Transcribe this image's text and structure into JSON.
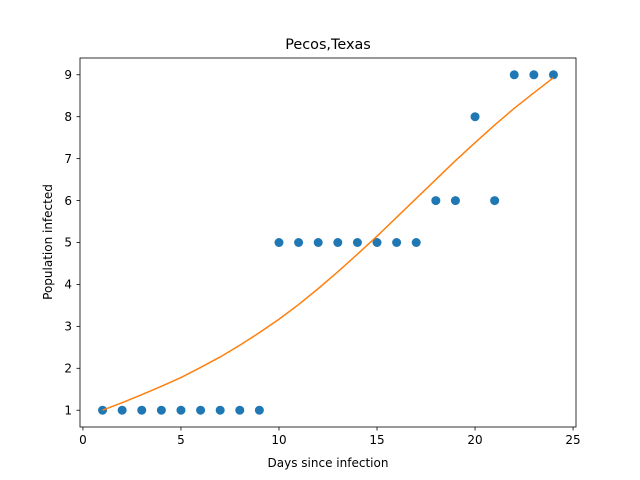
{
  "chart_data": {
    "type": "scatter",
    "title": "Pecos,Texas",
    "xlabel": "Days since infection",
    "ylabel": "Population infected",
    "xlim": [
      -0.15,
      25.15
    ],
    "ylim": [
      0.6,
      9.4
    ],
    "xticks": [
      0,
      5,
      10,
      15,
      20,
      25
    ],
    "yticks": [
      1,
      2,
      3,
      4,
      5,
      6,
      7,
      8,
      9
    ],
    "grid": false,
    "legend": "none",
    "series": [
      {
        "kind": "scatter",
        "color": "#1f77b4",
        "x": [
          1,
          2,
          3,
          4,
          5,
          6,
          7,
          8,
          9,
          10,
          11,
          12,
          13,
          14,
          15,
          16,
          17,
          18,
          19,
          20,
          21,
          22,
          23,
          24
        ],
        "y": [
          1,
          1,
          1,
          1,
          1,
          1,
          1,
          1,
          1,
          5,
          5,
          5,
          5,
          5,
          5,
          5,
          5,
          6,
          6,
          8,
          6,
          9,
          9,
          9
        ]
      },
      {
        "kind": "line",
        "color": "#ff7f0e",
        "x": [
          1,
          2,
          3,
          4,
          5,
          6,
          7,
          8,
          9,
          10,
          11,
          12,
          13,
          14,
          15,
          16,
          17,
          18,
          19,
          20,
          21,
          22,
          23,
          24
        ],
        "y": [
          1.0,
          1.18,
          1.37,
          1.57,
          1.78,
          2.02,
          2.27,
          2.55,
          2.85,
          3.17,
          3.52,
          3.9,
          4.3,
          4.72,
          5.15,
          5.6,
          6.05,
          6.5,
          6.95,
          7.38,
          7.8,
          8.2,
          8.57,
          8.93
        ]
      }
    ]
  }
}
